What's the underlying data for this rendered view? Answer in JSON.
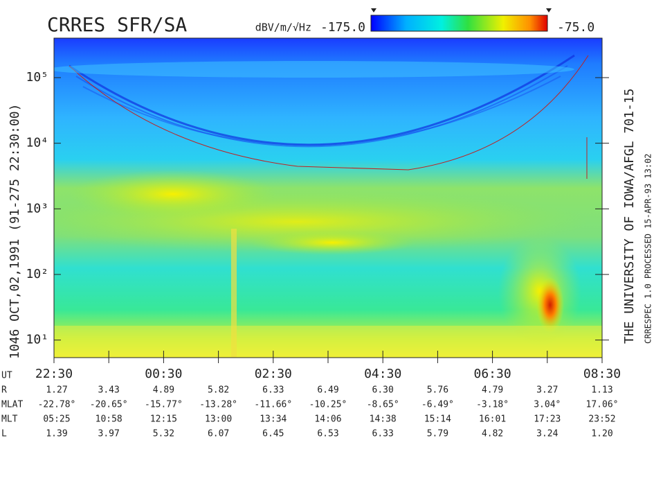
{
  "chart_data": {
    "type": "spectrogram",
    "title": "CRRES SFR/SA",
    "colorbar": {
      "label": "dBV/m/√Hz",
      "min": {
        "value": -175,
        "label": "-175.0"
      },
      "max": {
        "value": -75,
        "label": "-75.0"
      }
    },
    "y_label": "1046     OCT,02,1991  (91-275 22:30:00)",
    "right_label": "THE UNIVERSITY OF IOWA/AFGL 701-15",
    "right_note": "CRRESPEC 1.0   PROCESSED 15-APR-93   13:02",
    "y_scale": "log",
    "ylim": [
      5.4,
      400000
    ],
    "yticks": [
      {
        "value": 10,
        "label": "10¹"
      },
      {
        "value": 100,
        "label": "10²"
      },
      {
        "value": 1000,
        "label": "10³"
      },
      {
        "value": 10000,
        "label": "10⁴"
      },
      {
        "value": 100000,
        "label": "10⁵"
      }
    ],
    "x_label": "UT",
    "categories": [
      "22:30",
      null,
      "00:30",
      null,
      "02:30",
      null,
      "04:30",
      null,
      "06:30",
      null,
      "08:30"
    ],
    "ephemeris": [
      {
        "name": "R",
        "values": [
          "1.27",
          "3.43",
          "4.89",
          "5.82",
          "6.33",
          "6.49",
          "6.30",
          "5.76",
          "4.79",
          "3.27",
          "1.13"
        ]
      },
      {
        "name": "MLAT",
        "values": [
          "-22.78°",
          "-20.65°",
          "-15.77°",
          "-13.28°",
          "-11.66°",
          "-10.25°",
          "-8.65°",
          "-6.49°",
          "-3.18°",
          "3.04°",
          "17.06°"
        ]
      },
      {
        "name": "MLT",
        "values": [
          "05:25",
          "10:58",
          "12:15",
          "13:00",
          "13:34",
          "14:06",
          "14:38",
          "15:14",
          "16:01",
          "17:23",
          "23:52"
        ]
      },
      {
        "name": "L",
        "values": [
          "1.39",
          "3.97",
          "5.32",
          "6.07",
          "6.45",
          "6.53",
          "6.33",
          "5.79",
          "4.82",
          "3.24",
          "1.20"
        ]
      }
    ]
  }
}
